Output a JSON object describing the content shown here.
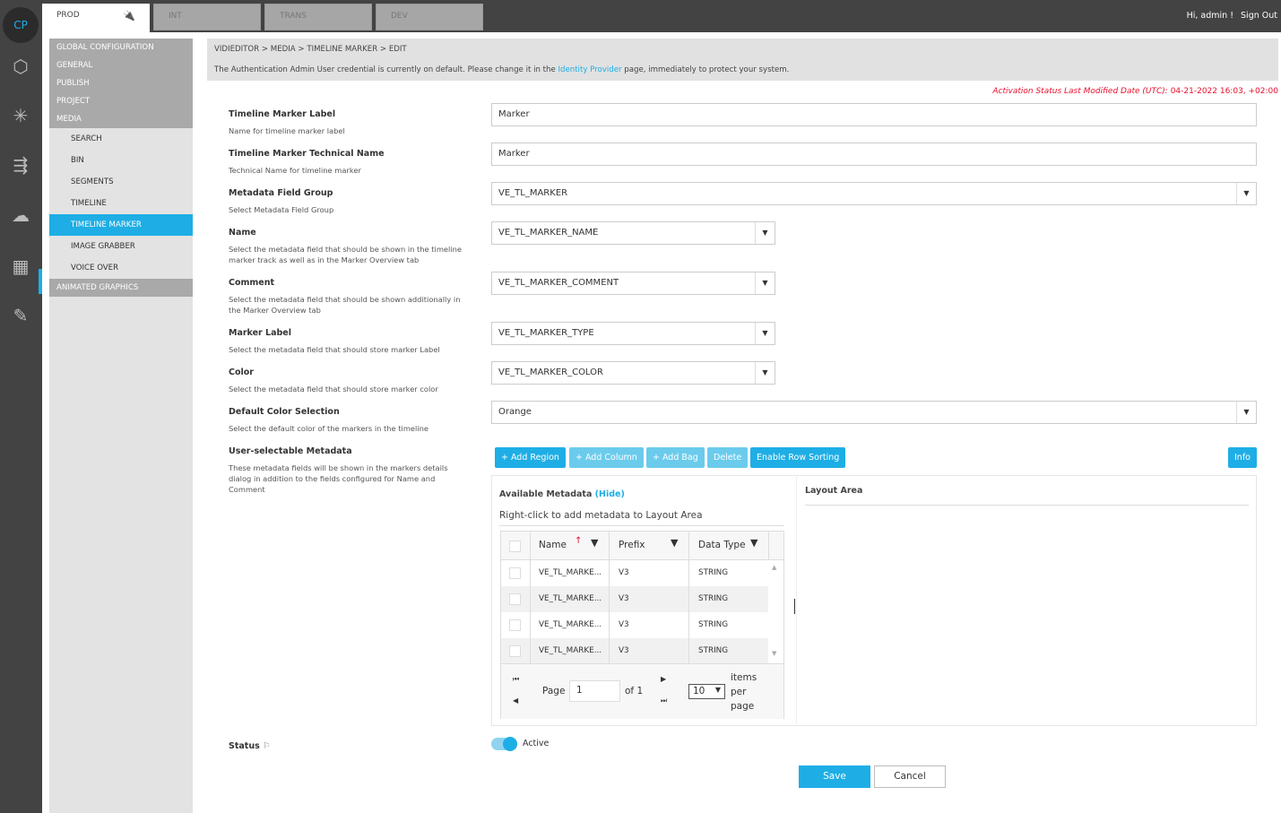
{
  "rail": {
    "logo": "CP",
    "icons": [
      "cubes-icon",
      "network-icon",
      "flow-icon",
      "cloud-network-icon",
      "media-tools-icon",
      "vector-pen-icon"
    ]
  },
  "env_tabs": [
    {
      "label": "PROD",
      "icon": "plug-icon",
      "active": true
    },
    {
      "label": "INT"
    },
    {
      "label": "TRANS"
    },
    {
      "label": "DEV"
    }
  ],
  "user": {
    "greeting": "Hi, admin !",
    "sign_out": "Sign Out"
  },
  "sidebar": {
    "groups_top": [
      "GLOBAL CONFIGURATION",
      "GENERAL",
      "PUBLISH",
      "PROJECT",
      "MEDIA"
    ],
    "media_items": [
      "SEARCH",
      "BIN",
      "SEGMENTS",
      "TIMELINE",
      "TIMELINE MARKER",
      "IMAGE GRABBER",
      "VOICE OVER"
    ],
    "active": "TIMELINE MARKER",
    "groups_bottom": [
      "ANIMATED GRAPHICS"
    ]
  },
  "breadcrumb": "VIDIEDITOR > MEDIA > TIMELINE MARKER > EDIT",
  "alert": {
    "before": "The Authentication Admin User credential is currently on default. Please change it in the ",
    "link": "Identity Provider",
    "after": " page, immediately to protect your system."
  },
  "activation": {
    "label": "Activation Status Last Modified Date (UTC):",
    "value": " 04-21-2022 16:03, +02:00"
  },
  "form": [
    {
      "label": "Timeline Marker Label",
      "desc": "Name for timeline marker label",
      "value": "Marker",
      "type": "text"
    },
    {
      "label": "Timeline Marker Technical Name",
      "desc": "Technical Name for timeline marker",
      "value": "Marker",
      "type": "text"
    },
    {
      "label": "Metadata Field Group",
      "desc": "Select Metadata Field Group",
      "value": "VE_TL_MARKER",
      "type": "select"
    },
    {
      "label": "Name",
      "desc": "Select the metadata field that should be shown in the timeline marker track as well as in the Marker Overview tab",
      "value": "VE_TL_MARKER_NAME",
      "type": "select"
    },
    {
      "label": "Comment",
      "desc": "Select the metadata field that should be shown additionally in the Marker Overview tab",
      "value": "VE_TL_MARKER_COMMENT",
      "type": "select"
    },
    {
      "label": "Marker Label",
      "desc": "Select the metadata field that should store marker Label",
      "value": "VE_TL_MARKER_TYPE",
      "type": "select"
    },
    {
      "label": "Color",
      "desc": "Select the metadata field that should store marker color",
      "value": "VE_TL_MARKER_COLOR",
      "type": "select"
    },
    {
      "label": "Default Color Selection",
      "desc": "Select the default color of the markers in the timeline",
      "value": "Orange",
      "type": "select"
    },
    {
      "label": "User-selectable Metadata",
      "desc": "These metadata fields will be shown in the markers details dialog in addition to the fields configured for Name and Comment"
    }
  ],
  "toolbar": {
    "add_region": "+ Add Region",
    "add_column": "+ Add Column",
    "add_bag": "+ Add Bag",
    "delete": "Delete",
    "enable_row_sorting": "Enable Row Sorting",
    "info": "Info"
  },
  "available": {
    "title": "Available Metadata",
    "hide": "(Hide)",
    "hint": "Right-click to add metadata to Layout Area",
    "columns": [
      "Name",
      "Prefix",
      "Data Type"
    ],
    "rows": [
      [
        "VE_TL_MARKE...",
        "V3",
        "STRING"
      ],
      [
        "VE_TL_MARKE...",
        "V3",
        "STRING"
      ],
      [
        "VE_TL_MARKE...",
        "V3",
        "STRING"
      ],
      [
        "VE_TL_MARKE...",
        "V3",
        "STRING"
      ]
    ],
    "pager": {
      "page_label": "Page",
      "page": "1",
      "of": "of 1",
      "per_page": "10",
      "items_per_page": "items per page"
    }
  },
  "layout_area": {
    "title": "Layout Area"
  },
  "status": {
    "label": "Status",
    "toggle_label": "Active",
    "on": true
  },
  "actions": {
    "save": "Save",
    "cancel": "Cancel"
  },
  "colors": {
    "accent": "#1eaee5",
    "topbar": "#434343",
    "alert": "#e8112d"
  }
}
